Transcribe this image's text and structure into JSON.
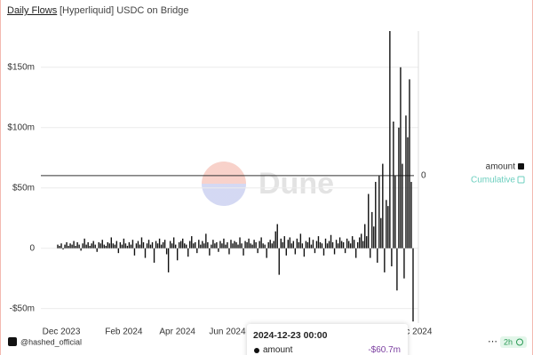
{
  "header": {
    "tab": "Daily Flows",
    "title": "[Hyperliquid] USDC on Bridge"
  },
  "watermark": "Dune",
  "footer": {
    "author": "@hashed_official",
    "refresh": "2h"
  },
  "tooltip": {
    "date": "2024-12-23 00:00",
    "series": "amount",
    "label": "-$60.7m"
  },
  "chart_data": {
    "type": "bar",
    "categories": [
      null,
      null,
      "Dec 2023",
      null,
      null,
      null,
      null,
      null,
      null,
      null,
      null,
      null,
      null,
      null,
      null,
      null,
      null,
      null,
      null,
      null,
      null,
      null,
      null,
      null,
      null,
      null,
      null,
      null,
      null,
      null,
      null,
      null,
      null,
      null,
      null,
      null,
      null,
      "Feb 2024",
      null,
      null,
      null,
      null,
      null,
      null,
      null,
      null,
      null,
      null,
      null,
      null,
      null,
      null,
      null,
      null,
      null,
      null,
      null,
      null,
      null,
      null,
      null,
      null,
      null,
      null,
      null,
      null,
      null,
      "Apr 2024",
      null,
      null,
      null,
      null,
      null,
      null,
      null,
      null,
      null,
      null,
      null,
      null,
      null,
      null,
      null,
      null,
      null,
      null,
      null,
      null,
      null,
      null,
      null,
      null,
      null,
      null,
      null,
      "Jun 2024",
      null,
      null,
      null,
      null,
      null,
      null,
      null,
      null,
      null,
      null,
      null,
      null,
      null,
      null,
      null,
      null,
      null,
      null,
      null,
      null,
      null,
      null,
      null,
      null,
      null,
      null,
      null,
      null,
      null,
      null,
      null,
      null,
      null,
      null,
      null,
      null,
      null,
      null,
      null,
      null,
      null,
      null,
      null,
      null,
      null,
      null,
      null,
      null,
      null,
      null,
      null,
      null,
      null,
      null,
      null,
      null,
      null,
      null,
      null,
      null,
      null,
      null,
      null,
      null,
      null,
      null,
      null,
      null,
      null,
      null,
      null,
      null,
      null,
      null,
      null,
      null,
      null,
      null,
      null,
      null,
      null,
      null,
      null,
      null,
      null,
      null,
      null,
      null,
      null,
      null,
      null,
      null,
      null,
      null,
      null,
      null,
      null,
      null,
      null,
      null,
      null,
      null,
      null,
      "Dec 2024"
    ],
    "series": [
      {
        "name": "amount",
        "color": "#111111",
        "values": [
          3,
          2,
          4,
          -1,
          3,
          5,
          2,
          4,
          3,
          6,
          2,
          5,
          3,
          -2,
          4,
          8,
          3,
          5,
          2,
          4,
          6,
          3,
          -3,
          5,
          4,
          7,
          3,
          2,
          5,
          4,
          9,
          4,
          3,
          6,
          -4,
          5,
          3,
          8,
          4,
          2,
          5,
          3,
          7,
          -6,
          4,
          6,
          3,
          9,
          5,
          -8,
          4,
          7,
          3,
          5,
          -12,
          6,
          4,
          8,
          3,
          5,
          7,
          -5,
          -20,
          6,
          4,
          9,
          3,
          -10,
          5,
          6,
          8,
          4,
          3,
          -7,
          6,
          10,
          4,
          5,
          -4,
          7,
          3,
          6,
          4,
          12,
          5,
          -6,
          3,
          7,
          4,
          5,
          -3,
          6,
          4,
          8,
          3,
          5,
          -5,
          7,
          4,
          6,
          5,
          3,
          9,
          4,
          -6,
          6,
          5,
          8,
          4,
          3,
          7,
          5,
          -4,
          6,
          9,
          4,
          3,
          -8,
          5,
          7,
          4,
          6,
          14,
          20,
          -22,
          8,
          5,
          10,
          -6,
          7,
          9,
          4,
          6,
          -5,
          8,
          5,
          12,
          4,
          -7,
          6,
          5,
          9,
          3,
          7,
          -4,
          6,
          10,
          5,
          4,
          -6,
          8,
          4,
          6,
          11,
          5,
          -5,
          7,
          4,
          9,
          6,
          5,
          -4,
          8,
          6,
          4,
          10,
          7,
          -8,
          5,
          9,
          12,
          6,
          20,
          10,
          45,
          -8,
          30,
          18,
          55,
          -12,
          60,
          25,
          70,
          -20,
          40,
          35,
          180,
          -15,
          105,
          60,
          -35,
          100,
          150,
          70,
          -25,
          110,
          92,
          140,
          55,
          -60.7
        ]
      }
    ],
    "disabled_series": [
      {
        "name": "Cumulative",
        "color": "#6ccfbf"
      }
    ],
    "ylim": [
      -62,
      180
    ],
    "yticks": [
      {
        "value": -50,
        "label": "-$50m"
      },
      0,
      {
        "value": 50,
        "label": "$50m"
      },
      {
        "value": 100,
        "label": "$100m"
      },
      {
        "value": 150,
        "label": "$150m"
      }
    ],
    "y2lim": [
      -1,
      0.98
    ],
    "y2ticks": [
      0
    ],
    "grid": true
  }
}
